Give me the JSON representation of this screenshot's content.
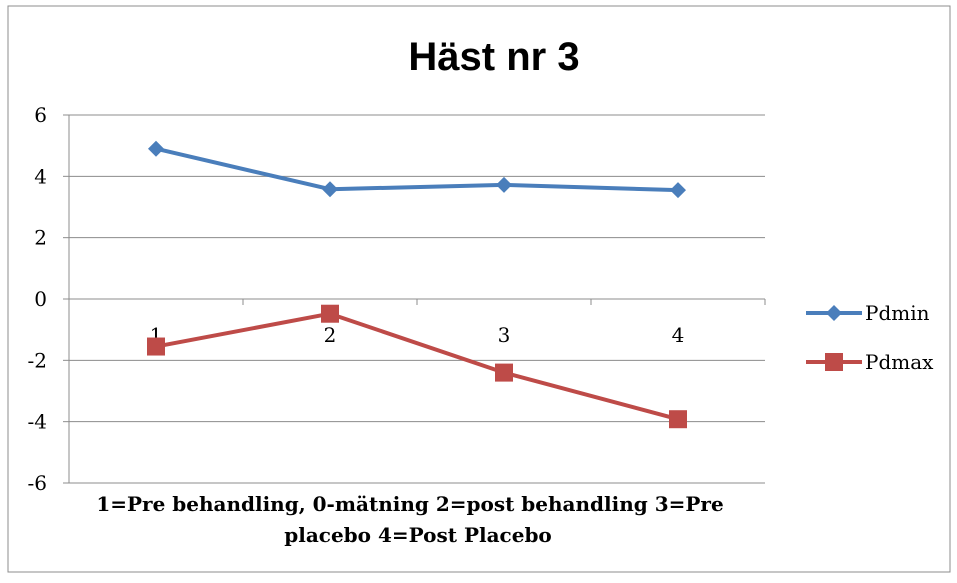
{
  "chart_data": {
    "type": "line",
    "title": "Häst nr 3",
    "xlabel_lines": [
      "1=Pre behandling, 0-mätning   2=post behandling 3=Pre",
      "placebo 4=Post Placebo"
    ],
    "ylabel": "",
    "categories": [
      "1",
      "2",
      "3",
      "4"
    ],
    "ylim": [
      -6,
      6
    ],
    "yticks": [
      -6,
      -4,
      -2,
      0,
      2,
      4,
      6
    ],
    "grid": true,
    "legend_position": "right",
    "series": [
      {
        "name": "Pdmin",
        "values": [
          4.9,
          3.58,
          3.72,
          3.55
        ],
        "color": "#4a7ebb",
        "marker": "diamond"
      },
      {
        "name": "Pdmax",
        "values": [
          -1.55,
          -0.48,
          -2.4,
          -3.92
        ],
        "color": "#be4b48",
        "marker": "square"
      }
    ]
  }
}
